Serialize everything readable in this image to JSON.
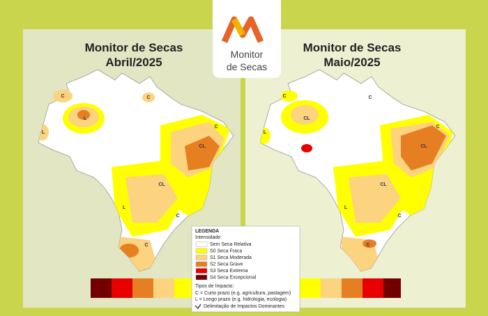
{
  "logo": {
    "line1": "Monitor",
    "line2": "de Secas"
  },
  "maps": [
    {
      "title": "Monitor de Secas",
      "period": "Abril/2025",
      "labels": [
        "C",
        "L",
        "C",
        "L",
        "C",
        "CL",
        "CL",
        "L",
        "C",
        "C"
      ]
    },
    {
      "title": "Monitor de Secas",
      "period": "Maio/2025",
      "labels": [
        "C",
        "CL",
        "C",
        "L",
        "C",
        "CL",
        "CL",
        "L",
        "C",
        "C"
      ]
    }
  ],
  "legend": {
    "title": "LEGENDA",
    "intensity_title": "Intensidade:",
    "items": [
      {
        "label": "Sem Seca Relativa",
        "color": "#ffffff"
      },
      {
        "label": "S0 Seca Fraca",
        "color": "#ffff00"
      },
      {
        "label": "S1 Seca Moderada",
        "color": "#fcd37f"
      },
      {
        "label": "S2 Seca Grave",
        "color": "#e67e22"
      },
      {
        "label": "S3 Seca Extrema",
        "color": "#e60000"
      },
      {
        "label": "S4 Seca Excepcional",
        "color": "#730000"
      }
    ],
    "impact_title": "Tipos de Impacto:",
    "impacts": [
      "C = Curto prazo (e.g. agricultura, pastagem)",
      "L = Longo prazo (e.g. hidrologia, ecologia)"
    ],
    "delimitation": "Delimitação de Impactos Dominantes"
  }
}
